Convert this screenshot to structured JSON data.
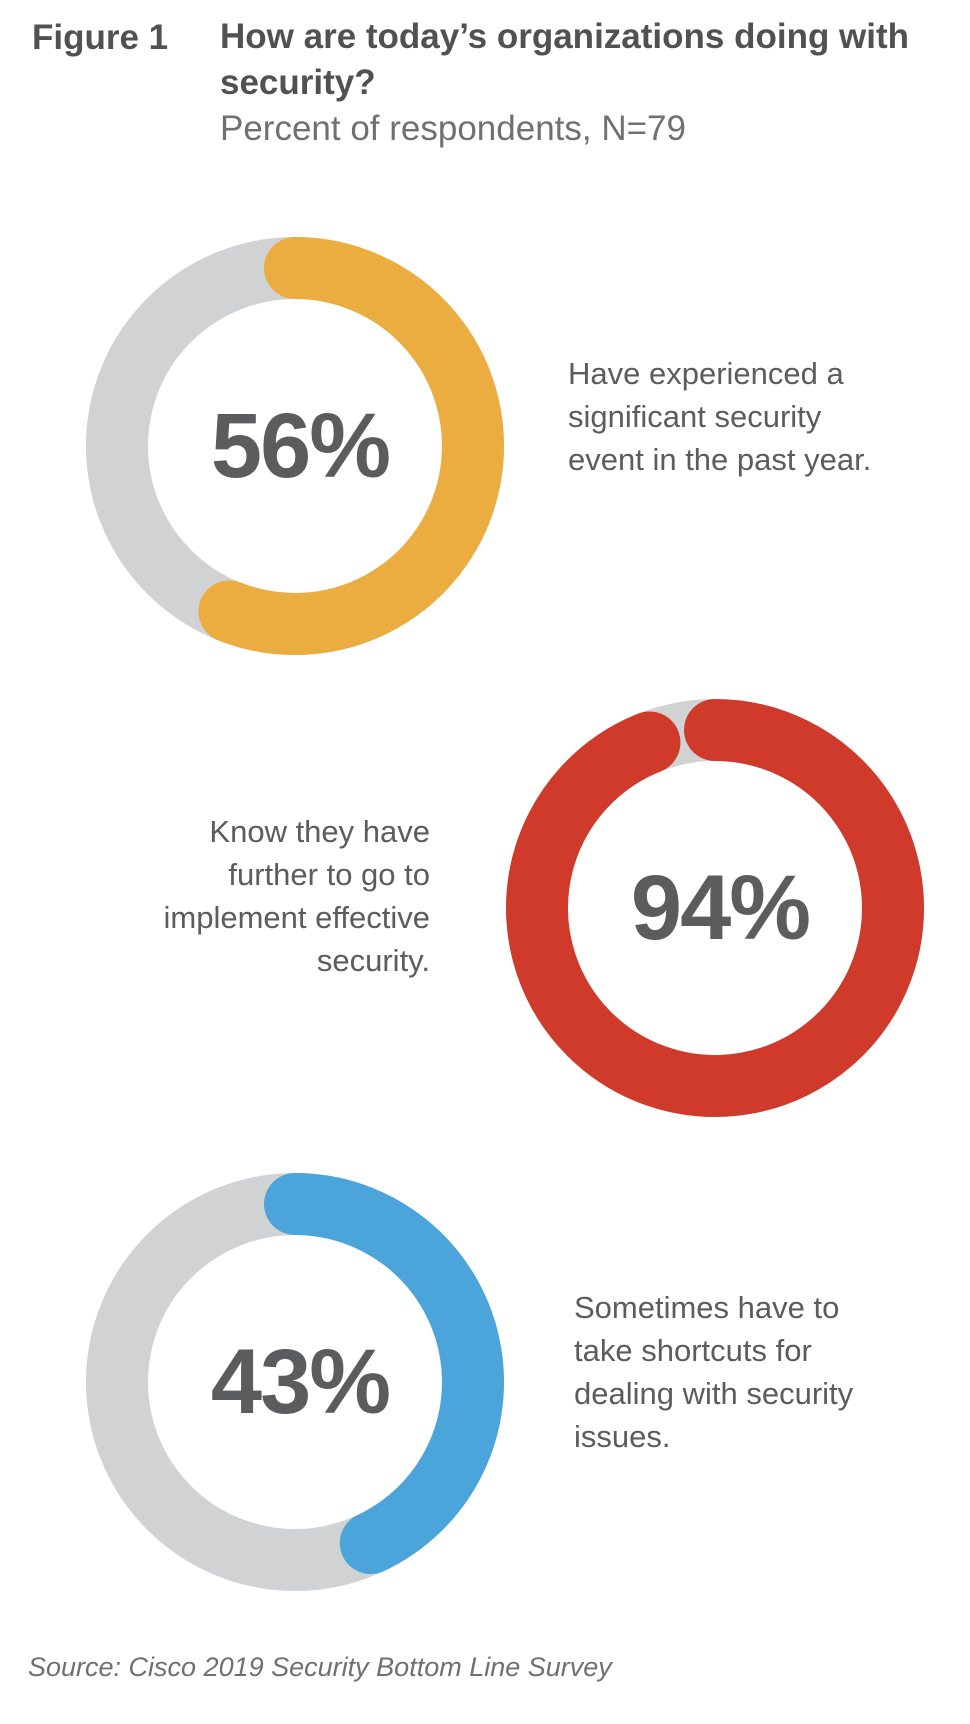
{
  "figure": {
    "label": "Figure 1",
    "title": "How are today’s organizations doing with security?",
    "subtitle": "Percent of respondents, N=79",
    "source": "Source: Cisco 2019 Security Bottom Line Survey"
  },
  "chart_data": [
    {
      "type": "pie",
      "value": 56,
      "max": 100,
      "label": "56%",
      "description": "Have experienced a significant security event in the past year.",
      "color": "#EBAD40",
      "track_color": "#D1D2D4"
    },
    {
      "type": "pie",
      "value": 94,
      "max": 100,
      "label": "94%",
      "description": "Know they have further to go to implement effective security.",
      "color": "#CF3A2B",
      "track_color": "#D1D2D4"
    },
    {
      "type": "pie",
      "value": 43,
      "max": 100,
      "label": "43%",
      "description": "Sometimes have to take shortcuts for dealing with security issues.",
      "color": "#4BA4DA",
      "track_color": "#D1D2D4"
    }
  ]
}
